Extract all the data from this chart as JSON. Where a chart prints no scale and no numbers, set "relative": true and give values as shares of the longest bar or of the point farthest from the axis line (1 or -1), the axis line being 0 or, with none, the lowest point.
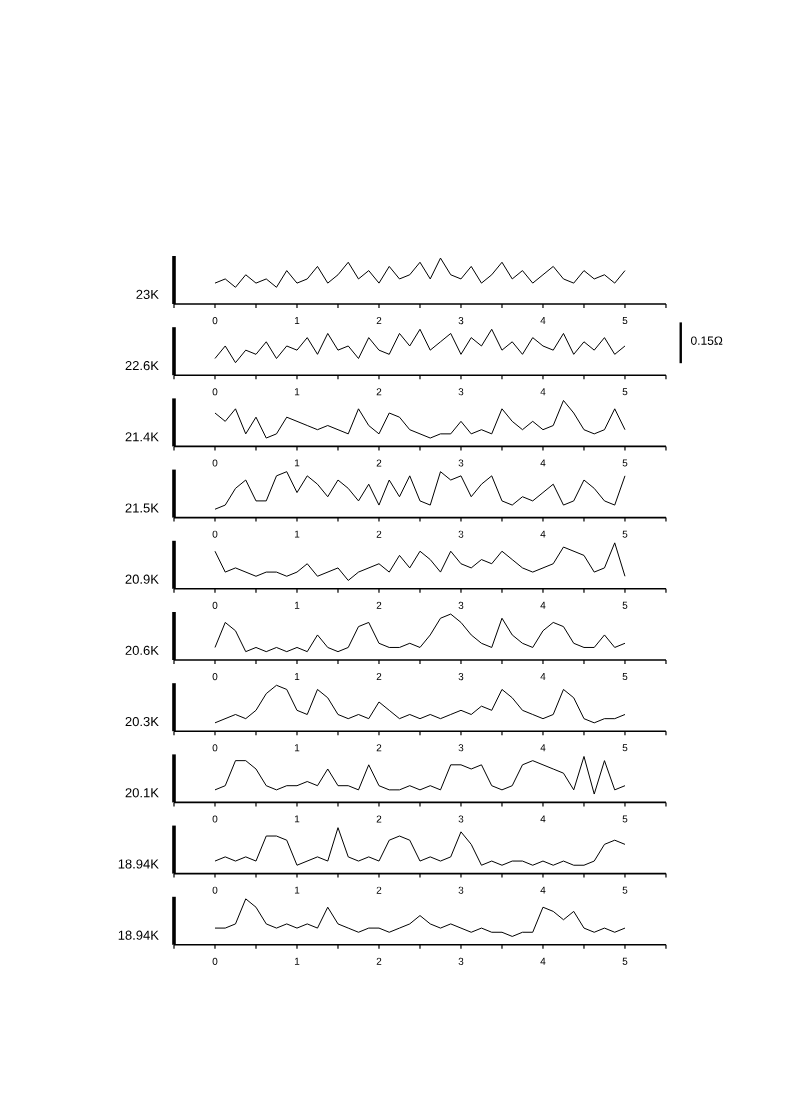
{
  "chart_data": [
    {
      "type": "line",
      "ylabel": "23K",
      "relative": true,
      "tick_labels": "x",
      "color": "#000000",
      "xlim": [
        -0.5,
        5.5
      ],
      "xticks": [
        {
          "value": -0.5,
          "label": null
        },
        0,
        {
          "value": 0.5,
          "label": null
        },
        1,
        {
          "value": 1.5,
          "label": null
        },
        2,
        {
          "value": 2.5,
          "label": null
        },
        3,
        {
          "value": 3.5,
          "label": null
        },
        4,
        {
          "value": 4.5,
          "label": null
        },
        5,
        {
          "value": 5.5,
          "label": null
        }
      ],
      "x": [
        0,
        0.125,
        0.25,
        0.375,
        0.5,
        0.625,
        0.75,
        0.875,
        1,
        1.125,
        1.25,
        1.375,
        1.5,
        1.625,
        1.75,
        1.875,
        2,
        2.125,
        2.25,
        2.375,
        2.5,
        2.625,
        2.75,
        2.875,
        3,
        3.125,
        3.25,
        3.375,
        3.5,
        3.625,
        3.75,
        3.875,
        4,
        4.125,
        4.25,
        4.375,
        4.5,
        4.625,
        4.75,
        4.875,
        5
      ],
      "values": [
        0.4,
        0.5,
        0.3,
        0.6,
        0.4,
        0.5,
        0.3,
        0.7,
        0.4,
        0.5,
        0.8,
        0.4,
        0.6,
        0.9,
        0.5,
        0.7,
        0.4,
        0.8,
        0.5,
        0.6,
        0.9,
        0.5,
        1.0,
        0.6,
        0.5,
        0.8,
        0.4,
        0.6,
        0.9,
        0.5,
        0.7,
        0.4,
        0.6,
        0.8,
        0.5,
        0.4,
        0.7,
        0.5,
        0.6,
        0.4,
        0.7
      ]
    },
    {
      "type": "line",
      "ylabel": "22.6K",
      "annotations": [
        "0.15Ω"
      ],
      "relative": true,
      "tick_labels": "x",
      "color": "#000000",
      "xlim": [
        -0.5,
        5.5
      ],
      "xticks": [
        {
          "value": -0.5,
          "label": null
        },
        0,
        {
          "value": 0.5,
          "label": null
        },
        1,
        {
          "value": 1.5,
          "label": null
        },
        2,
        {
          "value": 2.5,
          "label": null
        },
        3,
        {
          "value": 3.5,
          "label": null
        },
        4,
        {
          "value": 4.5,
          "label": null
        },
        5,
        {
          "value": 5.5,
          "label": null
        }
      ],
      "x": [
        0,
        0.125,
        0.25,
        0.375,
        0.5,
        0.625,
        0.75,
        0.875,
        1,
        1.125,
        1.25,
        1.375,
        1.5,
        1.625,
        1.75,
        1.875,
        2,
        2.125,
        2.25,
        2.375,
        2.5,
        2.625,
        2.75,
        2.875,
        3,
        3.125,
        3.25,
        3.375,
        3.5,
        3.625,
        3.75,
        3.875,
        4,
        4.125,
        4.25,
        4.375,
        4.5,
        4.625,
        4.75,
        4.875,
        5
      ],
      "values": [
        0.3,
        0.6,
        0.2,
        0.5,
        0.4,
        0.7,
        0.3,
        0.6,
        0.5,
        0.8,
        0.4,
        0.9,
        0.5,
        0.6,
        0.3,
        0.8,
        0.5,
        0.4,
        0.9,
        0.6,
        1.0,
        0.5,
        0.7,
        0.9,
        0.4,
        0.8,
        0.6,
        1.0,
        0.5,
        0.7,
        0.4,
        0.8,
        0.6,
        0.5,
        0.9,
        0.4,
        0.7,
        0.5,
        0.8,
        0.4,
        0.6
      ]
    },
    {
      "type": "line",
      "ylabel": "21.4K",
      "relative": true,
      "tick_labels": "x",
      "color": "#000000",
      "xlim": [
        -0.5,
        5.5
      ],
      "xticks": [
        {
          "value": -0.5,
          "label": null
        },
        0,
        {
          "value": 0.5,
          "label": null
        },
        1,
        {
          "value": 1.5,
          "label": null
        },
        2,
        {
          "value": 2.5,
          "label": null
        },
        3,
        {
          "value": 3.5,
          "label": null
        },
        4,
        {
          "value": 4.5,
          "label": null
        },
        5,
        {
          "value": 5.5,
          "label": null
        }
      ],
      "x": [
        0,
        0.125,
        0.25,
        0.375,
        0.5,
        0.625,
        0.75,
        0.875,
        1,
        1.125,
        1.25,
        1.375,
        1.5,
        1.625,
        1.75,
        1.875,
        2,
        2.125,
        2.25,
        2.375,
        2.5,
        2.625,
        2.75,
        2.875,
        3,
        3.125,
        3.25,
        3.375,
        3.5,
        3.625,
        3.75,
        3.875,
        4,
        4.125,
        4.25,
        4.375,
        4.5,
        4.625,
        4.75,
        4.875,
        5
      ],
      "values": [
        0.7,
        0.5,
        0.8,
        0.2,
        0.6,
        0.1,
        0.2,
        0.6,
        0.5,
        0.4,
        0.3,
        0.4,
        0.3,
        0.2,
        0.8,
        0.4,
        0.2,
        0.7,
        0.6,
        0.3,
        0.2,
        0.1,
        0.2,
        0.2,
        0.5,
        0.2,
        0.3,
        0.2,
        0.8,
        0.5,
        0.3,
        0.5,
        0.3,
        0.4,
        1.0,
        0.7,
        0.3,
        0.2,
        0.3,
        0.8,
        0.3
      ]
    },
    {
      "type": "line",
      "ylabel": "21.5K",
      "relative": true,
      "tick_labels": "x",
      "color": "#000000",
      "xlim": [
        -0.5,
        5.5
      ],
      "xticks": [
        {
          "value": -0.5,
          "label": null
        },
        0,
        {
          "value": 0.5,
          "label": null
        },
        1,
        {
          "value": 1.5,
          "label": null
        },
        2,
        {
          "value": 2.5,
          "label": null
        },
        3,
        {
          "value": 3.5,
          "label": null
        },
        4,
        {
          "value": 4.5,
          "label": null
        },
        5,
        {
          "value": 5.5,
          "label": null
        }
      ],
      "x": [
        0,
        0.125,
        0.25,
        0.375,
        0.5,
        0.625,
        0.75,
        0.875,
        1,
        1.125,
        1.25,
        1.375,
        1.5,
        1.625,
        1.75,
        1.875,
        2,
        2.125,
        2.25,
        2.375,
        2.5,
        2.625,
        2.75,
        2.875,
        3,
        3.125,
        3.25,
        3.375,
        3.5,
        3.625,
        3.75,
        3.875,
        4,
        4.125,
        4.25,
        4.375,
        4.5,
        4.625,
        4.75,
        4.875,
        5
      ],
      "values": [
        0.1,
        0.2,
        0.6,
        0.8,
        0.3,
        0.3,
        0.9,
        1.0,
        0.5,
        0.9,
        0.7,
        0.4,
        0.8,
        0.6,
        0.3,
        0.7,
        0.2,
        0.8,
        0.4,
        0.9,
        0.3,
        0.2,
        1.0,
        0.8,
        0.9,
        0.4,
        0.7,
        0.9,
        0.3,
        0.2,
        0.4,
        0.3,
        0.5,
        0.7,
        0.2,
        0.3,
        0.8,
        0.6,
        0.3,
        0.2,
        0.9
      ]
    },
    {
      "type": "line",
      "ylabel": "20.9K",
      "relative": true,
      "tick_labels": "x",
      "color": "#000000",
      "xlim": [
        -0.5,
        5.5
      ],
      "xticks": [
        {
          "value": -0.5,
          "label": null
        },
        0,
        {
          "value": 0.5,
          "label": null
        },
        1,
        {
          "value": 1.5,
          "label": null
        },
        2,
        {
          "value": 2.5,
          "label": null
        },
        3,
        {
          "value": 3.5,
          "label": null
        },
        4,
        {
          "value": 4.5,
          "label": null
        },
        5,
        {
          "value": 5.5,
          "label": null
        }
      ],
      "x": [
        0,
        0.125,
        0.25,
        0.375,
        0.5,
        0.625,
        0.75,
        0.875,
        1,
        1.125,
        1.25,
        1.375,
        1.5,
        1.625,
        1.75,
        1.875,
        2,
        2.125,
        2.25,
        2.375,
        2.5,
        2.625,
        2.75,
        2.875,
        3,
        3.125,
        3.25,
        3.375,
        3.5,
        3.625,
        3.75,
        3.875,
        4,
        4.125,
        4.25,
        4.375,
        4.5,
        4.625,
        4.75,
        4.875,
        5
      ],
      "values": [
        0.8,
        0.3,
        0.4,
        0.3,
        0.2,
        0.3,
        0.3,
        0.2,
        0.3,
        0.5,
        0.2,
        0.3,
        0.4,
        0.1,
        0.3,
        0.4,
        0.5,
        0.3,
        0.7,
        0.4,
        0.8,
        0.6,
        0.3,
        0.8,
        0.5,
        0.4,
        0.6,
        0.5,
        0.8,
        0.6,
        0.4,
        0.3,
        0.4,
        0.5,
        0.9,
        0.8,
        0.7,
        0.3,
        0.4,
        1.0,
        0.2
      ]
    },
    {
      "type": "line",
      "ylabel": "20.6K",
      "relative": true,
      "tick_labels": "x",
      "color": "#000000",
      "xlim": [
        -0.5,
        5.5
      ],
      "xticks": [
        {
          "value": -0.5,
          "label": null
        },
        0,
        {
          "value": 0.5,
          "label": null
        },
        1,
        {
          "value": 1.5,
          "label": null
        },
        2,
        {
          "value": 2.5,
          "label": null
        },
        3,
        {
          "value": 3.5,
          "label": null
        },
        4,
        {
          "value": 4.5,
          "label": null
        },
        5,
        {
          "value": 5.5,
          "label": null
        }
      ],
      "x": [
        0,
        0.125,
        0.25,
        0.375,
        0.5,
        0.625,
        0.75,
        0.875,
        1,
        1.125,
        1.25,
        1.375,
        1.5,
        1.625,
        1.75,
        1.875,
        2,
        2.125,
        2.25,
        2.375,
        2.5,
        2.625,
        2.75,
        2.875,
        3,
        3.125,
        3.25,
        3.375,
        3.5,
        3.625,
        3.75,
        3.875,
        4,
        4.125,
        4.25,
        4.375,
        4.5,
        4.625,
        4.75,
        4.875,
        5
      ],
      "values": [
        0.2,
        0.8,
        0.6,
        0.1,
        0.2,
        0.1,
        0.2,
        0.1,
        0.2,
        0.1,
        0.5,
        0.2,
        0.1,
        0.2,
        0.7,
        0.8,
        0.3,
        0.2,
        0.2,
        0.3,
        0.2,
        0.5,
        0.9,
        1.0,
        0.8,
        0.5,
        0.3,
        0.2,
        0.9,
        0.5,
        0.3,
        0.2,
        0.6,
        0.8,
        0.7,
        0.3,
        0.2,
        0.2,
        0.5,
        0.2,
        0.3
      ]
    },
    {
      "type": "line",
      "ylabel": "20.3K",
      "relative": true,
      "tick_labels": "x",
      "color": "#000000",
      "xlim": [
        -0.5,
        5.5
      ],
      "xticks": [
        {
          "value": -0.5,
          "label": null
        },
        0,
        {
          "value": 0.5,
          "label": null
        },
        1,
        {
          "value": 1.5,
          "label": null
        },
        2,
        {
          "value": 2.5,
          "label": null
        },
        3,
        {
          "value": 3.5,
          "label": null
        },
        4,
        {
          "value": 4.5,
          "label": null
        },
        5,
        {
          "value": 5.5,
          "label": null
        }
      ],
      "x": [
        0,
        0.125,
        0.25,
        0.375,
        0.5,
        0.625,
        0.75,
        0.875,
        1,
        1.125,
        1.25,
        1.375,
        1.5,
        1.625,
        1.75,
        1.875,
        2,
        2.125,
        2.25,
        2.375,
        2.5,
        2.625,
        2.75,
        2.875,
        3,
        3.125,
        3.25,
        3.375,
        3.5,
        3.625,
        3.75,
        3.875,
        4,
        4.125,
        4.25,
        4.375,
        4.5,
        4.625,
        4.75,
        4.875,
        5
      ],
      "values": [
        0.1,
        0.2,
        0.3,
        0.2,
        0.4,
        0.8,
        1.0,
        0.9,
        0.4,
        0.3,
        0.9,
        0.7,
        0.3,
        0.2,
        0.3,
        0.2,
        0.6,
        0.4,
        0.2,
        0.3,
        0.2,
        0.3,
        0.2,
        0.3,
        0.4,
        0.3,
        0.5,
        0.4,
        0.9,
        0.7,
        0.4,
        0.3,
        0.2,
        0.3,
        0.9,
        0.7,
        0.2,
        0.1,
        0.2,
        0.2,
        0.3
      ]
    },
    {
      "type": "line",
      "ylabel": "20.1K",
      "relative": true,
      "tick_labels": "x",
      "color": "#000000",
      "xlim": [
        -0.5,
        5.5
      ],
      "xticks": [
        {
          "value": -0.5,
          "label": null
        },
        0,
        {
          "value": 0.5,
          "label": null
        },
        1,
        {
          "value": 1.5,
          "label": null
        },
        2,
        {
          "value": 2.5,
          "label": null
        },
        3,
        {
          "value": 3.5,
          "label": null
        },
        4,
        {
          "value": 4.5,
          "label": null
        },
        5,
        {
          "value": 5.5,
          "label": null
        }
      ],
      "x": [
        0,
        0.125,
        0.25,
        0.375,
        0.5,
        0.625,
        0.75,
        0.875,
        1,
        1.125,
        1.25,
        1.375,
        1.5,
        1.625,
        1.75,
        1.875,
        2,
        2.125,
        2.25,
        2.375,
        2.5,
        2.625,
        2.75,
        2.875,
        3,
        3.125,
        3.25,
        3.375,
        3.5,
        3.625,
        3.75,
        3.875,
        4,
        4.125,
        4.25,
        4.375,
        4.5,
        4.625,
        4.75,
        4.875,
        5
      ],
      "values": [
        0.2,
        0.3,
        0.9,
        0.9,
        0.7,
        0.3,
        0.2,
        0.3,
        0.3,
        0.4,
        0.3,
        0.7,
        0.3,
        0.3,
        0.2,
        0.8,
        0.3,
        0.2,
        0.2,
        0.3,
        0.2,
        0.3,
        0.2,
        0.8,
        0.8,
        0.7,
        0.8,
        0.3,
        0.2,
        0.3,
        0.8,
        0.9,
        0.8,
        0.7,
        0.6,
        0.2,
        1.0,
        0.1,
        0.9,
        0.2,
        0.3
      ]
    },
    {
      "type": "line",
      "ylabel": "18.94K",
      "relative": true,
      "tick_labels": "x",
      "color": "#000000",
      "xlim": [
        -0.5,
        5.5
      ],
      "xticks": [
        {
          "value": -0.5,
          "label": null
        },
        0,
        {
          "value": 0.5,
          "label": null
        },
        1,
        {
          "value": 1.5,
          "label": null
        },
        2,
        {
          "value": 2.5,
          "label": null
        },
        3,
        {
          "value": 3.5,
          "label": null
        },
        4,
        {
          "value": 4.5,
          "label": null
        },
        5,
        {
          "value": 5.5,
          "label": null
        }
      ],
      "x": [
        0,
        0.125,
        0.25,
        0.375,
        0.5,
        0.625,
        0.75,
        0.875,
        1,
        1.125,
        1.25,
        1.375,
        1.5,
        1.625,
        1.75,
        1.875,
        2,
        2.125,
        2.25,
        2.375,
        2.5,
        2.625,
        2.75,
        2.875,
        3,
        3.125,
        3.25,
        3.375,
        3.5,
        3.625,
        3.75,
        3.875,
        4,
        4.125,
        4.25,
        4.375,
        4.5,
        4.625,
        4.75,
        4.875,
        5
      ],
      "values": [
        0.2,
        0.3,
        0.2,
        0.3,
        0.2,
        0.8,
        0.8,
        0.7,
        0.1,
        0.2,
        0.3,
        0.2,
        1.0,
        0.3,
        0.2,
        0.3,
        0.2,
        0.7,
        0.8,
        0.7,
        0.2,
        0.3,
        0.2,
        0.3,
        0.9,
        0.6,
        0.1,
        0.2,
        0.1,
        0.2,
        0.2,
        0.1,
        0.2,
        0.1,
        0.2,
        0.1,
        0.1,
        0.2,
        0.6,
        0.7,
        0.6
      ]
    },
    {
      "type": "line",
      "ylabel": "18.94K",
      "relative": true,
      "tick_labels": "x",
      "color": "#000000",
      "xlim": [
        -0.5,
        5.5
      ],
      "xticks": [
        {
          "value": -0.5,
          "label": null
        },
        0,
        {
          "value": 0.5,
          "label": null
        },
        1,
        {
          "value": 1.5,
          "label": null
        },
        2,
        {
          "value": 2.5,
          "label": null
        },
        3,
        {
          "value": 3.5,
          "label": null
        },
        4,
        {
          "value": 4.5,
          "label": null
        },
        5,
        {
          "value": 5.5,
          "label": null
        }
      ],
      "x": [
        0,
        0.125,
        0.25,
        0.375,
        0.5,
        0.625,
        0.75,
        0.875,
        1,
        1.125,
        1.25,
        1.375,
        1.5,
        1.625,
        1.75,
        1.875,
        2,
        2.125,
        2.25,
        2.375,
        2.5,
        2.625,
        2.75,
        2.875,
        3,
        3.125,
        3.25,
        3.375,
        3.5,
        3.625,
        3.75,
        3.875,
        4,
        4.125,
        4.25,
        4.375,
        4.5,
        4.625,
        4.75,
        4.875,
        5
      ],
      "values": [
        0.3,
        0.3,
        0.4,
        1.0,
        0.8,
        0.4,
        0.3,
        0.4,
        0.3,
        0.4,
        0.3,
        0.8,
        0.4,
        0.3,
        0.2,
        0.3,
        0.3,
        0.2,
        0.3,
        0.4,
        0.6,
        0.4,
        0.3,
        0.4,
        0.3,
        0.2,
        0.3,
        0.2,
        0.2,
        0.1,
        0.2,
        0.2,
        0.8,
        0.7,
        0.5,
        0.7,
        0.3,
        0.2,
        0.3,
        0.2,
        0.3
      ]
    }
  ]
}
